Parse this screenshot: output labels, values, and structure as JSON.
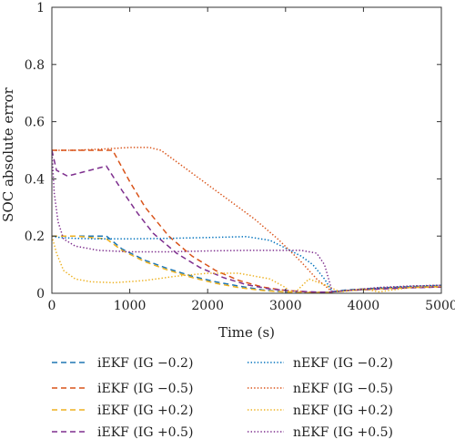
{
  "chart_data": {
    "type": "line",
    "xlabel": "Time (s)",
    "ylabel": "SOC absolute error",
    "xlim": [
      0,
      5000
    ],
    "ylim": [
      0,
      1
    ],
    "x_ticks": [
      0,
      1000,
      2000,
      3000,
      4000,
      5000
    ],
    "y_ticks": [
      0,
      0.2,
      0.4,
      0.6,
      0.8,
      1
    ],
    "y_tick_labels": [
      "0",
      "0.2",
      "0.4",
      "0.6",
      "0.8",
      "1"
    ],
    "grid": false,
    "legend_position": "below",
    "series": [
      {
        "name": "iEKF (IG −0.2)",
        "color": "#1f77b4",
        "style": "dashed",
        "x": [
          0,
          300,
          700,
          900,
          1200,
          1500,
          1800,
          2100,
          2400,
          2700,
          3000,
          3300,
          3550,
          3800,
          4200,
          4600,
          5000
        ],
        "y": [
          0.2,
          0.2,
          0.2,
          0.155,
          0.115,
          0.085,
          0.06,
          0.04,
          0.025,
          0.012,
          0.004,
          0.002,
          0.004,
          0.012,
          0.018,
          0.022,
          0.025
        ]
      },
      {
        "name": "iEKF (IG −0.5)",
        "color": "#d95319",
        "style": "dashed",
        "x": [
          0,
          400,
          780,
          1000,
          1200,
          1500,
          1800,
          2100,
          2400,
          2700,
          3000,
          3300,
          3550,
          3800,
          4200,
          4600,
          5000
        ],
        "y": [
          0.5,
          0.5,
          0.5,
          0.39,
          0.3,
          0.2,
          0.13,
          0.08,
          0.045,
          0.022,
          0.01,
          0.004,
          0.003,
          0.01,
          0.015,
          0.02,
          0.022
        ]
      },
      {
        "name": "iEKF (IG +0.2)",
        "color": "#edb120",
        "style": "dashed",
        "x": [
          0,
          300,
          700,
          900,
          1200,
          1500,
          1800,
          2100,
          2400,
          2700,
          3000,
          3300,
          3550,
          3800,
          4200,
          4600,
          5000
        ],
        "y": [
          0.2,
          0.2,
          0.19,
          0.15,
          0.11,
          0.08,
          0.055,
          0.035,
          0.02,
          0.01,
          0.004,
          0.002,
          0.003,
          0.01,
          0.016,
          0.02,
          0.023
        ]
      },
      {
        "name": "iEKF (IG +0.5)",
        "color": "#7e2f8e",
        "style": "dashed",
        "x": [
          0,
          60,
          200,
          700,
          900,
          1100,
          1300,
          1600,
          1900,
          2200,
          2500,
          2800,
          3100,
          3400,
          3550,
          3800,
          4200,
          4600,
          5000
        ],
        "y": [
          0.5,
          0.43,
          0.41,
          0.445,
          0.36,
          0.28,
          0.21,
          0.14,
          0.09,
          0.055,
          0.03,
          0.015,
          0.008,
          0.004,
          0.004,
          0.01,
          0.015,
          0.019,
          0.022
        ]
      },
      {
        "name": "nEKF (IG −0.2)",
        "color": "#0072bd",
        "style": "dotted",
        "x": [
          0,
          100,
          300,
          600,
          1000,
          1500,
          2000,
          2500,
          2800,
          3000,
          3200,
          3350,
          3500,
          3600,
          3800,
          4200,
          4600,
          5000
        ],
        "y": [
          0.2,
          0.195,
          0.192,
          0.19,
          0.19,
          0.192,
          0.195,
          0.198,
          0.185,
          0.158,
          0.13,
          0.1,
          0.05,
          0.005,
          0.01,
          0.018,
          0.024,
          0.028
        ]
      },
      {
        "name": "nEKF (IG −0.5)",
        "color": "#d95319",
        "style": "dotted",
        "x": [
          0,
          300,
          700,
          1000,
          1250,
          1400,
          1700,
          2000,
          2300,
          2600,
          2900,
          3200,
          3400,
          3600,
          3800,
          4200,
          4600,
          5000
        ],
        "y": [
          0.5,
          0.5,
          0.505,
          0.51,
          0.51,
          0.5,
          0.44,
          0.38,
          0.32,
          0.26,
          0.19,
          0.11,
          0.05,
          0.005,
          0.01,
          0.02,
          0.025,
          0.028
        ]
      },
      {
        "name": "nEKF (IG +0.2)",
        "color": "#edb120",
        "style": "dotted",
        "x": [
          0,
          60,
          150,
          300,
          500,
          800,
          1200,
          1600,
          2000,
          2400,
          2800,
          3000,
          3050,
          3150,
          3300,
          3500,
          3700,
          4000,
          4200,
          4600,
          5000
        ],
        "y": [
          0.2,
          0.14,
          0.08,
          0.05,
          0.04,
          0.037,
          0.045,
          0.06,
          0.07,
          0.07,
          0.05,
          0.02,
          0.005,
          0.01,
          0.05,
          0.03,
          0.005,
          0.015,
          0.005,
          0.02,
          0.024
        ]
      },
      {
        "name": "nEKF (IG +0.5)",
        "color": "#7e2f8e",
        "style": "dotted",
        "x": [
          0,
          30,
          80,
          150,
          300,
          600,
          1000,
          1500,
          2000,
          2500,
          3000,
          3200,
          3400,
          3500,
          3600,
          3800,
          4200,
          4600,
          5000
        ],
        "y": [
          0.5,
          0.35,
          0.25,
          0.19,
          0.165,
          0.15,
          0.145,
          0.145,
          0.148,
          0.15,
          0.15,
          0.15,
          0.14,
          0.1,
          0.005,
          0.01,
          0.02,
          0.025,
          0.028
        ]
      }
    ]
  }
}
